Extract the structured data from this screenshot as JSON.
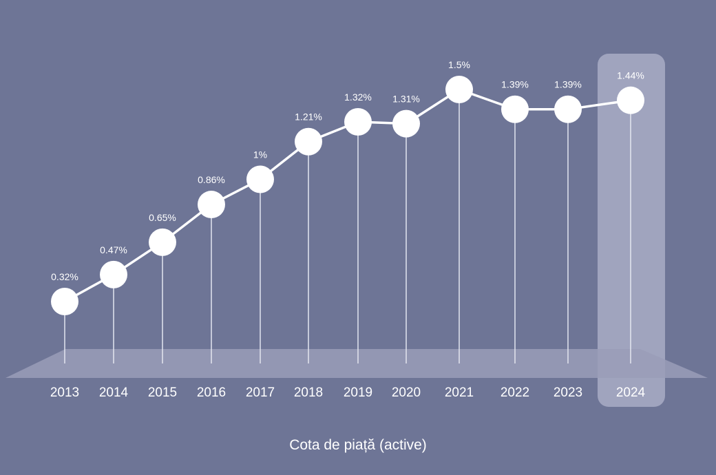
{
  "chart_data": {
    "type": "line",
    "categories": [
      "2013",
      "2014",
      "2015",
      "2016",
      "2017",
      "2018",
      "2019",
      "2020",
      "2021",
      "2022",
      "2023",
      "2024"
    ],
    "values": [
      0.32,
      0.47,
      0.65,
      0.86,
      1.0,
      1.21,
      1.32,
      1.31,
      1.5,
      1.39,
      1.39,
      1.44
    ],
    "data_labels": [
      "0.32%",
      "0.47%",
      "0.65%",
      "0.86%",
      "1%",
      "1.21%",
      "1.32%",
      "1.31%",
      "1.5%",
      "1.39%",
      "1.39%",
      "1.44%"
    ],
    "xlabel": "Cota de piață (active)",
    "ylabel": "",
    "highlighted_category": "2024",
    "grid": false,
    "colors": {
      "background": "#6e7596",
      "line": "#ffffff",
      "highlight": "#a9adc6",
      "floor": "#9a9eb8"
    }
  }
}
